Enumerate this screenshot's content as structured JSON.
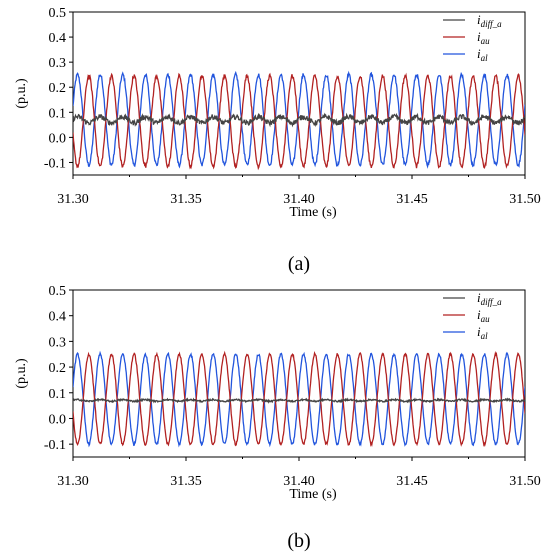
{
  "chart_data": [
    {
      "type": "line",
      "caption": "(a)",
      "xlabel": "Time (s)",
      "ylabel": "(p.u.)",
      "xlim": [
        31.3,
        31.5
      ],
      "ylim": [
        -0.15,
        0.5
      ],
      "xticks": [
        "31.30",
        "31.35",
        "31.40",
        "31.45",
        "31.50"
      ],
      "yticks": [
        "-0.1",
        "0.0",
        "0.1",
        "0.2",
        "0.3",
        "0.4",
        "0.5"
      ],
      "legend_position": "top-right",
      "grid": false,
      "series": [
        {
          "name": "i",
          "sub": "diff_a",
          "color": "#444444",
          "waveform": {
            "offset": 0.07,
            "amplitude": 0.012,
            "cycles": 20,
            "phase_deg": 0,
            "noise": 0.01
          }
        },
        {
          "name": "i",
          "sub": "au",
          "color": "#b22222",
          "waveform": {
            "offset": 0.065,
            "amplitude": 0.18,
            "cycles": 20,
            "phase_deg": 180,
            "noise": 0.008
          }
        },
        {
          "name": "i",
          "sub": "al",
          "color": "#2255dd",
          "waveform": {
            "offset": 0.07,
            "amplitude": 0.18,
            "cycles": 20,
            "phase_deg": 0,
            "noise": 0.008
          }
        }
      ]
    },
    {
      "type": "line",
      "caption": "(b)",
      "xlabel": "Time (s)",
      "ylabel": "(p.u.)",
      "xlim": [
        31.3,
        31.5
      ],
      "ylim": [
        -0.15,
        0.5
      ],
      "xticks": [
        "31.30",
        "31.35",
        "31.40",
        "31.45",
        "31.50"
      ],
      "yticks": [
        "-0.1",
        "0.0",
        "0.1",
        "0.2",
        "0.3",
        "0.4",
        "0.5"
      ],
      "legend_position": "top-right",
      "grid": false,
      "series": [
        {
          "name": "i",
          "sub": "diff_a",
          "color": "#444444",
          "waveform": {
            "offset": 0.07,
            "amplitude": 0.003,
            "cycles": 20,
            "phase_deg": 0,
            "noise": 0.003
          }
        },
        {
          "name": "i",
          "sub": "au",
          "color": "#b22222",
          "waveform": {
            "offset": 0.075,
            "amplitude": 0.175,
            "cycles": 20,
            "phase_deg": 180,
            "noise": 0.005
          }
        },
        {
          "name": "i",
          "sub": "al",
          "color": "#2255dd",
          "waveform": {
            "offset": 0.075,
            "amplitude": 0.175,
            "cycles": 20,
            "phase_deg": 0,
            "noise": 0.005
          }
        }
      ]
    }
  ]
}
